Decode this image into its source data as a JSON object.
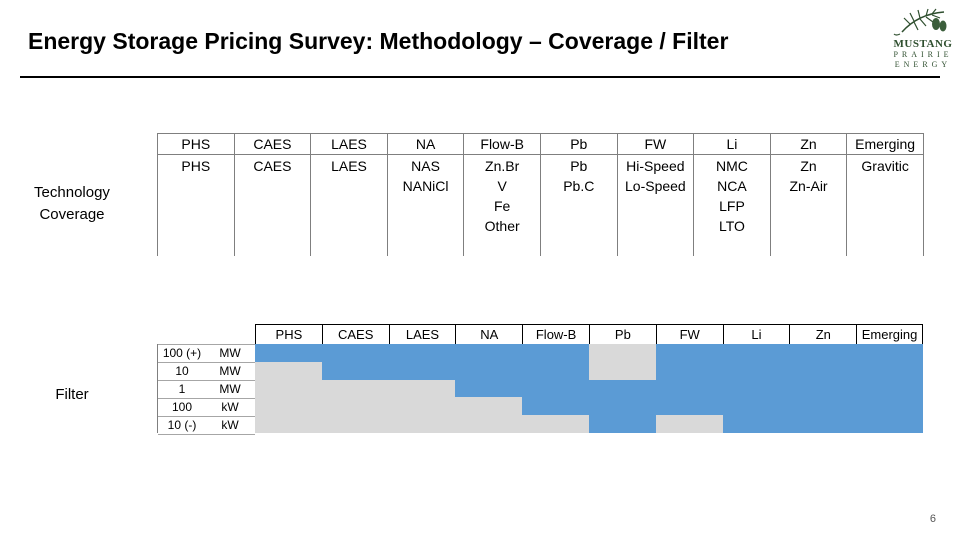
{
  "slide": {
    "title": "Energy Storage Pricing Survey: Methodology – Coverage / Filter",
    "page_number": "6"
  },
  "logo": {
    "line1": "MUSTANG",
    "line2": "PRAIRIE",
    "line3": "ENERGY",
    "icon": "pine-branch-icon"
  },
  "labels": {
    "technology": "Technology\nCoverage",
    "filter": "Filter"
  },
  "technology_table": [
    {
      "header": "PHS",
      "items": [
        "PHS"
      ]
    },
    {
      "header": "CAES",
      "items": [
        "CAES"
      ]
    },
    {
      "header": "LAES",
      "items": [
        "LAES"
      ]
    },
    {
      "header": "NA",
      "items": [
        "NAS",
        "NANiCl"
      ]
    },
    {
      "header": "Flow-B",
      "items": [
        "Zn.Br",
        "V",
        "Fe",
        "Other"
      ]
    },
    {
      "header": "Pb",
      "items": [
        "Pb",
        "Pb.C"
      ]
    },
    {
      "header": "FW",
      "items": [
        "Hi-Speed",
        "Lo-Speed"
      ]
    },
    {
      "header": "Li",
      "items": [
        "NMC",
        "NCA",
        "LFP",
        "LTO"
      ]
    },
    {
      "header": "Zn",
      "items": [
        "Zn",
        "Zn-Air"
      ]
    },
    {
      "header": "Emerging",
      "items": [
        "Gravitic"
      ]
    }
  ],
  "filter": {
    "headers": [
      "PHS",
      "CAES",
      "LAES",
      "NA",
      "Flow-B",
      "Pb",
      "FW",
      "Li",
      "Zn",
      "Emerging"
    ],
    "rows": [
      {
        "value": "100 (+)",
        "unit": "MW"
      },
      {
        "value": "10",
        "unit": "MW"
      },
      {
        "value": "1",
        "unit": "MW"
      },
      {
        "value": "100",
        "unit": "kW"
      },
      {
        "value": "10 (-)",
        "unit": "kW"
      }
    ],
    "coverage": [
      [
        1,
        1,
        1,
        1,
        1,
        0,
        1,
        1,
        1,
        1
      ],
      [
        0,
        1,
        1,
        1,
        1,
        0,
        1,
        1,
        1,
        1
      ],
      [
        0,
        0,
        0,
        1,
        1,
        1,
        1,
        1,
        1,
        1
      ],
      [
        0,
        0,
        0,
        0,
        1,
        1,
        1,
        1,
        1,
        1
      ],
      [
        0,
        0,
        0,
        0,
        0,
        1,
        0,
        1,
        1,
        1
      ]
    ],
    "colors": {
      "covered": "#5b9bd5",
      "not_covered": "#d9d9d9"
    }
  }
}
